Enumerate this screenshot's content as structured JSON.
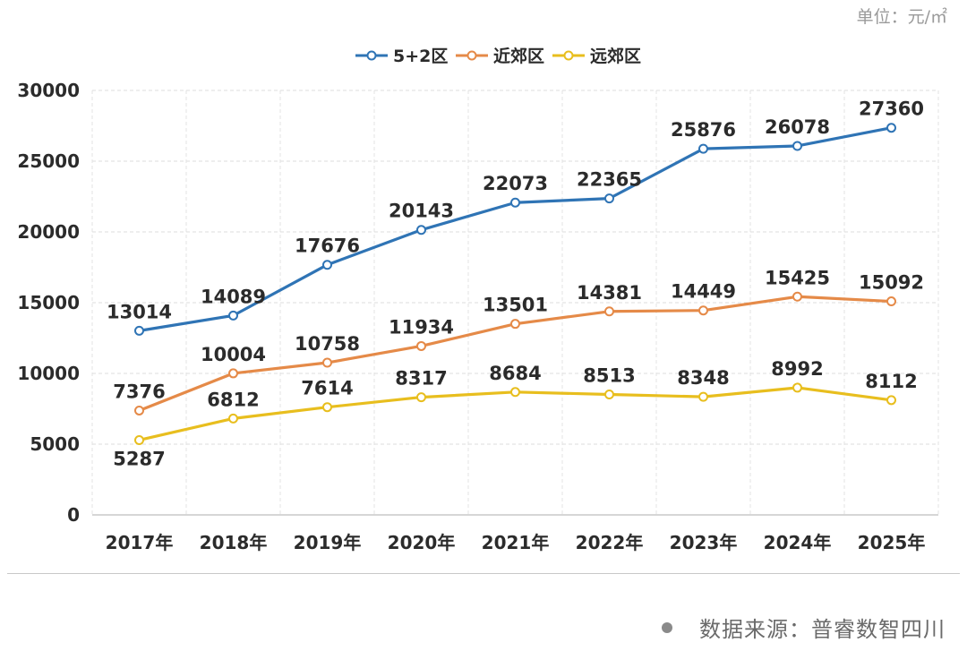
{
  "unit_label": "单位：元/㎡",
  "source": "数据来源：普睿数智四川",
  "chart_data": {
    "type": "line",
    "title": "",
    "xlabel": "",
    "ylabel": "",
    "ylim": [
      0,
      30000
    ],
    "yticks": [
      0,
      5000,
      10000,
      15000,
      20000,
      25000,
      30000
    ],
    "categories": [
      "2017年",
      "2018年",
      "2019年",
      "2020年",
      "2021年",
      "2022年",
      "2023年",
      "2024年",
      "2025年"
    ],
    "grid": true,
    "legend_position": "top-center",
    "series": [
      {
        "name": "5+2区",
        "color": "#2F74B5",
        "values": [
          13014,
          14089,
          17676,
          20143,
          22073,
          22365,
          25876,
          26078,
          27360
        ],
        "label_side": "above"
      },
      {
        "name": "近郊区",
        "color": "#E58A48",
        "values": [
          7376,
          10004,
          10758,
          11934,
          13501,
          14381,
          14449,
          15425,
          15092
        ],
        "label_side": "above"
      },
      {
        "name": "远郊区",
        "color": "#E8BE1E",
        "values": [
          5287,
          6812,
          7614,
          8317,
          8684,
          8513,
          8348,
          8992,
          8112
        ],
        "label_side": "above",
        "label_side_overrides": {
          "0": "below"
        }
      }
    ]
  }
}
